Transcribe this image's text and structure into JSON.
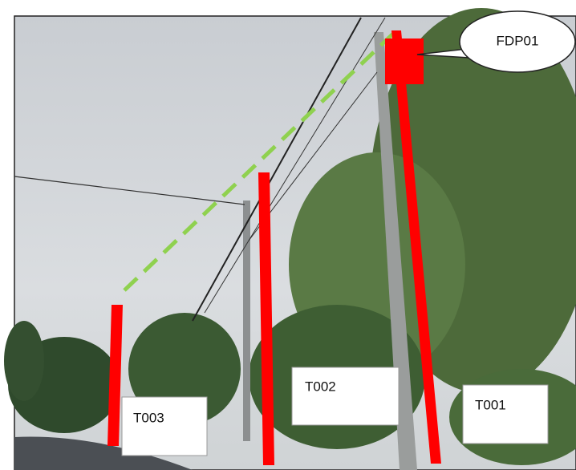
{
  "callout": {
    "text": "FDP01"
  },
  "poles": [
    {
      "label": "T001"
    },
    {
      "label": "T002"
    },
    {
      "label": "T003"
    }
  ]
}
